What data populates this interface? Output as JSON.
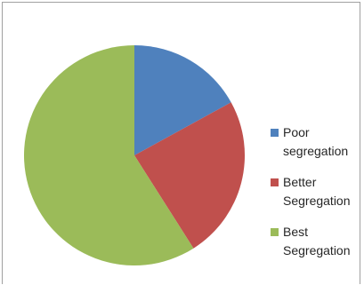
{
  "chart_data": {
    "type": "pie",
    "title": "",
    "slices": [
      {
        "label_lines": [
          "Poor",
          "segregation"
        ],
        "value": 17,
        "color": "#4f81bd"
      },
      {
        "label_lines": [
          "Better",
          "Segregation"
        ],
        "value": 24,
        "color": "#c0504d"
      },
      {
        "label_lines": [
          "Best",
          "Segregation"
        ],
        "value": 59,
        "color": "#9bbb59"
      }
    ],
    "start_angle": "12 o'clock",
    "direction": "clockwise",
    "legend_position": "right"
  }
}
